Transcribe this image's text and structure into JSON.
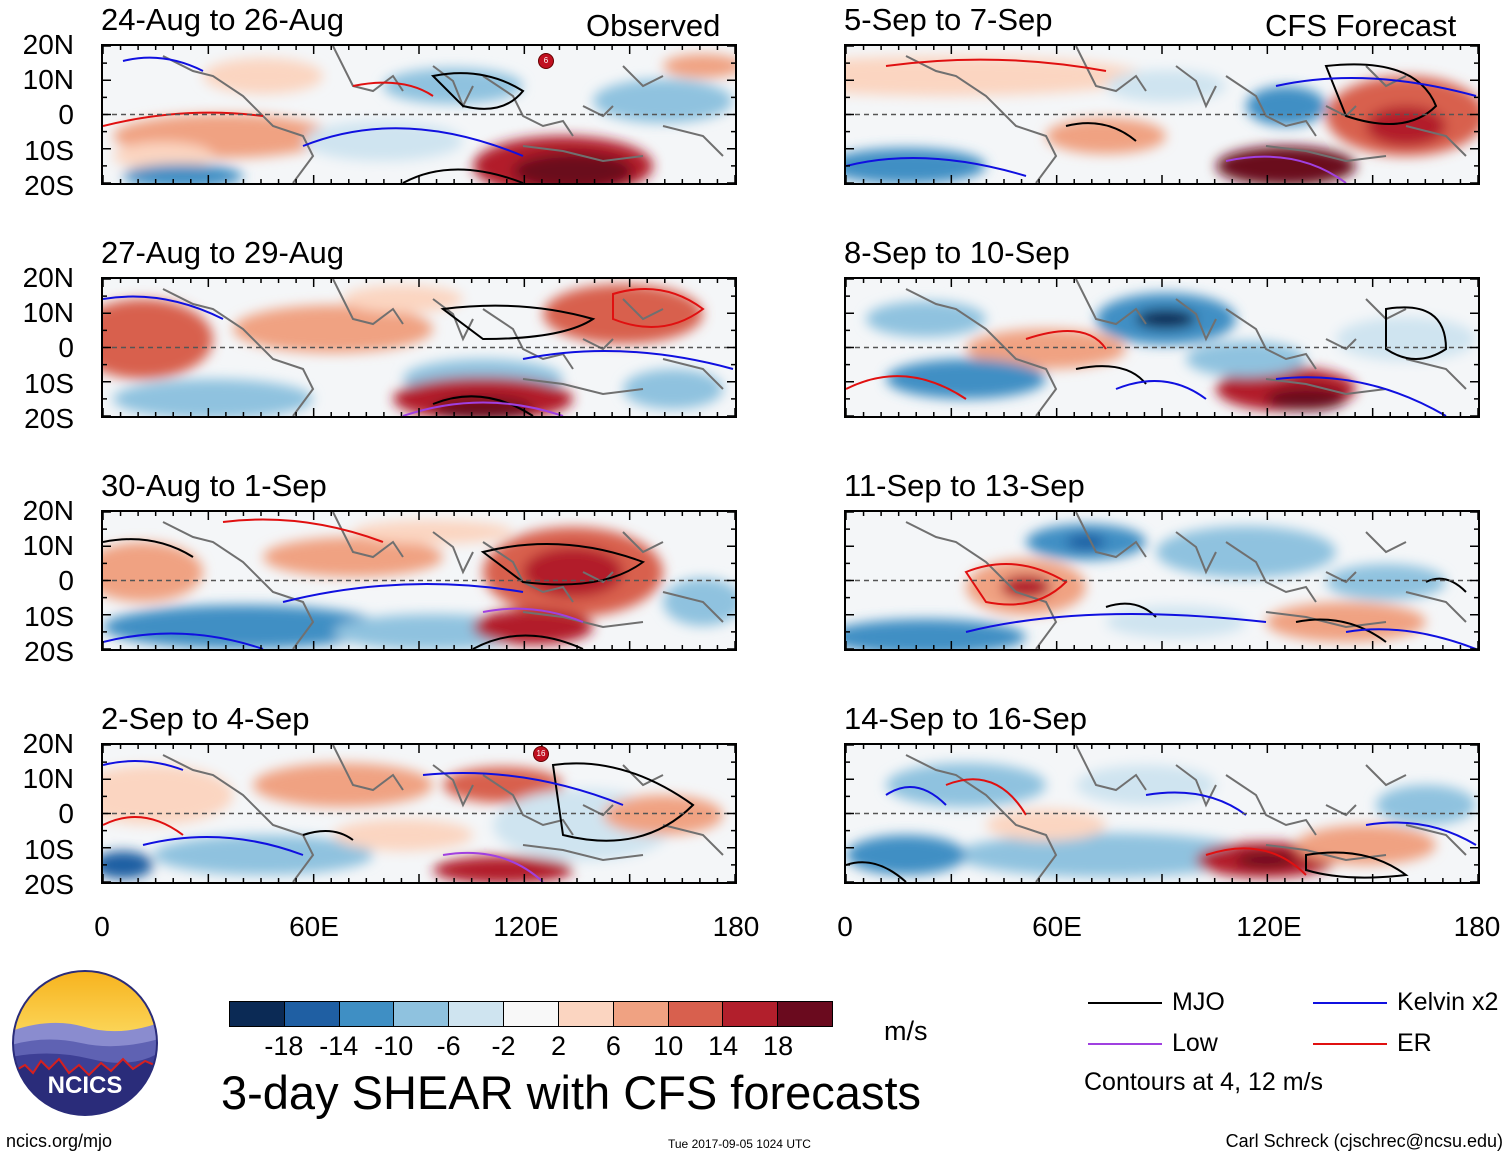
{
  "panels": {
    "left": [
      {
        "period": "24-Aug to 26-Aug"
      },
      {
        "period": "27-Aug to 29-Aug"
      },
      {
        "period": "30-Aug to 1-Sep"
      },
      {
        "period": "2-Sep to 4-Sep"
      }
    ],
    "right": [
      {
        "period": "5-Sep to 7-Sep"
      },
      {
        "period": "8-Sep to 10-Sep"
      },
      {
        "period": "11-Sep to 13-Sep"
      },
      {
        "period": "14-Sep to 16-Sep"
      }
    ],
    "left_corner": "Observed",
    "right_corner": "CFS Forecast"
  },
  "axes": {
    "lat_labels": [
      "20N",
      "10N",
      "0",
      "10S",
      "20S"
    ],
    "lon_labels": [
      "0",
      "60E",
      "120E",
      "180"
    ]
  },
  "colorbar": {
    "labels": [
      "-18",
      "-14",
      "-10",
      "-6",
      "-2",
      "2",
      "6",
      "10",
      "14",
      "18"
    ],
    "colors": [
      "#0b2a55",
      "#1f5fa3",
      "#3f8fc4",
      "#8fc2df",
      "#cfe4f0",
      "#f8f8f8",
      "#fbd5c1",
      "#f0a282",
      "#d8604e",
      "#b21f2c",
      "#6a0a1e"
    ],
    "units": "m/s"
  },
  "title": "3-day SHEAR with CFS forecasts",
  "legend": {
    "mjo": "MJO",
    "kelvin": "Kelvin x2",
    "low": "Low",
    "er": "ER",
    "contours_note": "Contours at 4, 12 m/s",
    "colors": {
      "mjo": "#000000",
      "kelvin": "#1010e0",
      "low": "#a040e0",
      "er": "#e01010"
    }
  },
  "footer": {
    "url": "ncics.org/mjo",
    "timestamp": "Tue 2017-09-05 1024 UTC",
    "author": "Carl Schreck (cjschrec@ncsu.edu)"
  },
  "logo": {
    "text": "NCICS"
  },
  "storm_markers": [
    {
      "panel": "left-1",
      "label": "6"
    },
    {
      "panel": "left-4",
      "label": "16"
    }
  ]
}
